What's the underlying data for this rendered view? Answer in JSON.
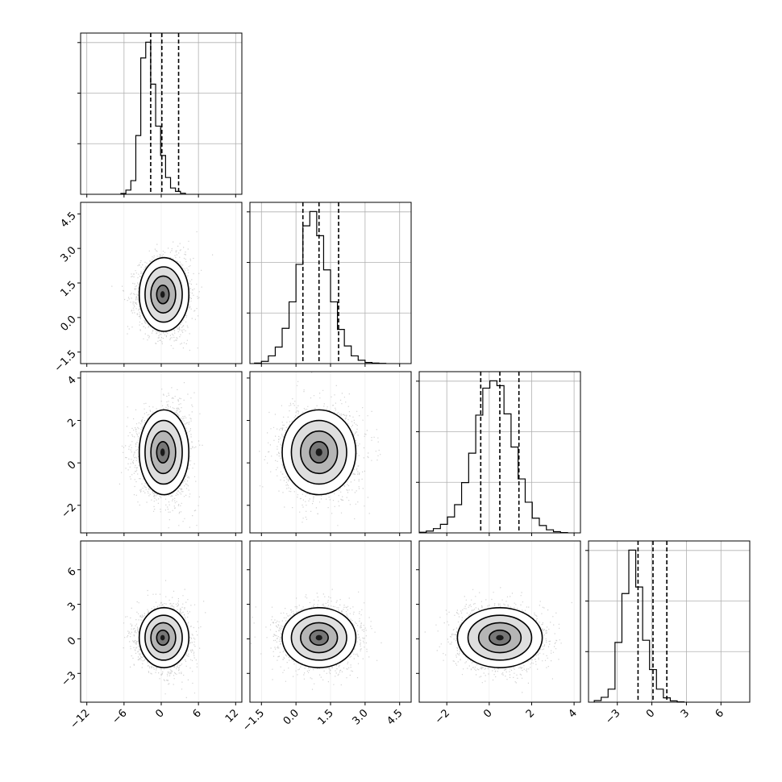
{
  "chart_data": {
    "type": "corner",
    "title": "",
    "grid": true,
    "quantile_lines": "dashed",
    "parameters": [
      {
        "index": 0,
        "range": [
          -13,
          13
        ],
        "ticks": [
          -12,
          -6,
          0,
          6,
          12
        ],
        "quantiles": [
          -1.7,
          0.1,
          2.8
        ]
      },
      {
        "index": 1,
        "range": [
          -2.0,
          5.0
        ],
        "ticks": [
          -1.5,
          0.0,
          1.5,
          3.0,
          4.5
        ],
        "quantiles": [
          0.3,
          1.0,
          1.85
        ]
      },
      {
        "index": 2,
        "range": [
          -3.3,
          4.3
        ],
        "ticks": [
          -2,
          0,
          2,
          4
        ],
        "quantiles": [
          -0.4,
          0.5,
          1.4
        ]
      },
      {
        "index": 3,
        "range": [
          -5.5,
          8.5
        ],
        "ticks": [
          -3,
          0,
          3,
          6
        ],
        "quantiles": [
          -1.2,
          0.1,
          1.3
        ]
      }
    ],
    "tick_labels": {
      "x": [
        [
          "−12",
          "−6",
          "0",
          "6",
          "12"
        ],
        [
          "−1.5",
          "0.0",
          "1.5",
          "3.0",
          "4.5"
        ],
        [
          "−2",
          "0",
          "2",
          "4"
        ],
        [
          "−3",
          "0",
          "3",
          "6"
        ]
      ],
      "y": [
        [],
        [
          "−1.5",
          "0.0",
          "1.5",
          "3.0",
          "4.5"
        ],
        [
          "−2",
          "0",
          "2",
          "4"
        ],
        [
          "−3",
          "0",
          "3",
          "6"
        ]
      ]
    },
    "histograms": [
      {
        "param": 0,
        "bin_start": -6.5,
        "bin_width": 0.8,
        "counts": [
          8,
          40,
          130,
          560,
          1300,
          1450,
          1050,
          650,
          370,
          160,
          60,
          28,
          10
        ]
      },
      {
        "param": 1,
        "bin_start": -1.8,
        "bin_width": 0.3,
        "counts": [
          5,
          20,
          70,
          150,
          320,
          560,
          900,
          1250,
          1380,
          1160,
          850,
          560,
          310,
          160,
          70,
          30,
          10,
          5,
          2
        ]
      },
      {
        "param": 2,
        "bin_start": -3.3,
        "bin_width": 0.333,
        "counts": [
          5,
          15,
          35,
          70,
          130,
          230,
          410,
          650,
          960,
          1180,
          1240,
          1200,
          970,
          700,
          440,
          250,
          120,
          60,
          25,
          10,
          3
        ]
      },
      {
        "param": 3,
        "bin_start": -5.0,
        "bin_width": 0.6,
        "counts": [
          15,
          45,
          120,
          550,
          1000,
          1400,
          1060,
          570,
          300,
          120,
          40,
          12,
          3
        ]
      }
    ],
    "joint": [
      {
        "x": 0,
        "y": 1,
        "means": [
          0.2,
          1.0
        ],
        "sigmas": [
          2.0,
          0.8
        ],
        "rho": 0.0,
        "skew": 0.25
      },
      {
        "x": 0,
        "y": 2,
        "means": [
          0.2,
          0.5
        ],
        "sigmas": [
          2.0,
          1.0
        ],
        "rho": 0.0,
        "skew": 0.25
      },
      {
        "x": 0,
        "y": 3,
        "means": [
          0.2,
          0.1
        ],
        "sigmas": [
          2.0,
          1.3
        ],
        "rho": 0.0,
        "skew": 0.25
      },
      {
        "x": 1,
        "y": 2,
        "means": [
          1.0,
          0.5
        ],
        "sigmas": [
          0.8,
          1.0
        ],
        "rho": 0.0,
        "skew": 0.0
      },
      {
        "x": 1,
        "y": 3,
        "means": [
          1.0,
          0.1
        ],
        "sigmas": [
          0.8,
          1.3
        ],
        "rho": 0.0,
        "skew": 0.0
      },
      {
        "x": 2,
        "y": 3,
        "means": [
          0.5,
          0.1
        ],
        "sigmas": [
          1.0,
          1.3
        ],
        "rho": 0.0,
        "skew": 0.0
      }
    ]
  }
}
